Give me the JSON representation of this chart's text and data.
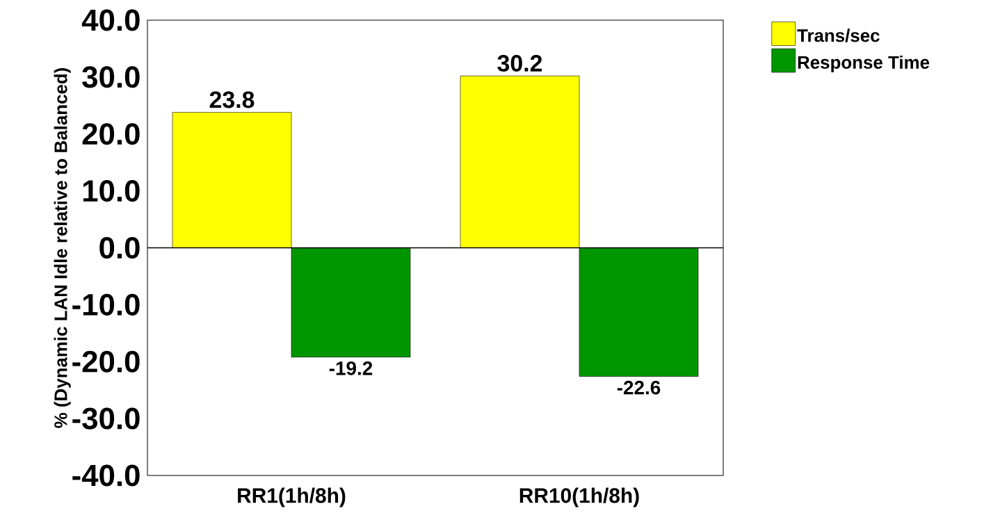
{
  "chart_data": {
    "type": "bar",
    "ylabel": "% (Dynamic LAN Idle relative to Balanced)",
    "categories": [
      "RR1(1h/8h)",
      "RR10(1h/8h)"
    ],
    "series": [
      {
        "name": "Trans/sec",
        "color": "#ffff00",
        "values": [
          23.8,
          30.2
        ]
      },
      {
        "name": "Response Time",
        "color": "#009600",
        "values": [
          -19.2,
          -22.6
        ]
      }
    ],
    "ylim": [
      -40,
      40
    ],
    "yticks": [
      {
        "value": -40,
        "label": "-40.0"
      },
      {
        "value": -30,
        "label": "-30.0"
      },
      {
        "value": -20,
        "label": "-20.0"
      },
      {
        "value": -10,
        "label": "-10.0"
      },
      {
        "value": 0,
        "label": "0.0"
      },
      {
        "value": 10,
        "label": "10.0"
      },
      {
        "value": 20,
        "label": "20.0"
      },
      {
        "value": 30,
        "label": "30.0"
      },
      {
        "value": 40,
        "label": "40.0"
      }
    ],
    "ref_lines": [
      {
        "axis": "y",
        "value": 0,
        "color": "#000000"
      }
    ],
    "data_labels": true,
    "grid": false,
    "legend": "top right"
  }
}
